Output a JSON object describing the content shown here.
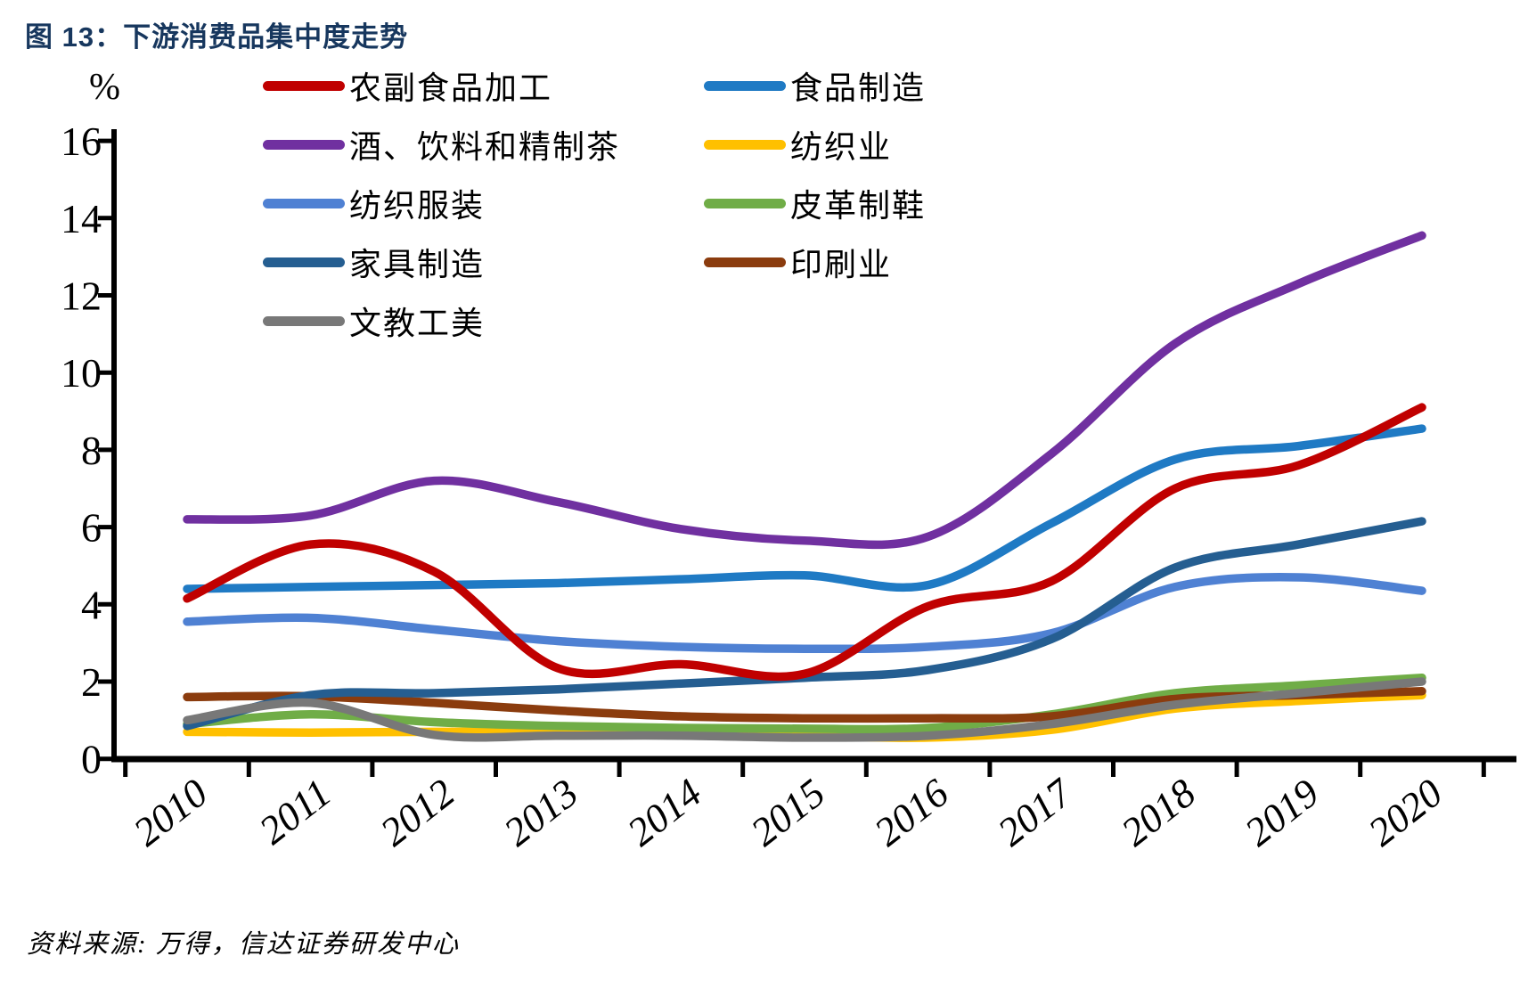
{
  "header": {
    "title": "图 13：下游消费品集中度走势"
  },
  "source": {
    "text": "资料来源: 万得，信达证券研发中心"
  },
  "chart_data": {
    "type": "line",
    "title": "图 13：下游消费品集中度走势",
    "xlabel": "",
    "ylabel": "%",
    "x": [
      2010,
      2011,
      2012,
      2013,
      2014,
      2015,
      2016,
      2017,
      2018,
      2019,
      2020
    ],
    "ylim": [
      0,
      16
    ],
    "yticks": [
      0,
      2,
      4,
      6,
      8,
      10,
      12,
      14,
      16
    ],
    "grid": false,
    "legend_position": "top",
    "series": [
      {
        "name": "农副食品加工",
        "color": "#C00000",
        "values": [
          4.15,
          5.55,
          4.85,
          2.35,
          2.45,
          2.2,
          3.95,
          4.6,
          7.0,
          7.6,
          9.1
        ]
      },
      {
        "name": "食品制造",
        "color": "#1F7AC4",
        "values": [
          4.4,
          4.45,
          4.5,
          4.55,
          4.65,
          4.75,
          4.5,
          6.1,
          7.75,
          8.1,
          8.55
        ]
      },
      {
        "name": "酒、饮料和精制茶",
        "color": "#7030A0",
        "values": [
          6.2,
          6.3,
          7.2,
          6.65,
          5.95,
          5.65,
          5.75,
          7.9,
          10.75,
          12.3,
          13.55
        ]
      },
      {
        "name": "纺织业",
        "color": "#FFC000",
        "values": [
          0.7,
          0.68,
          0.7,
          0.7,
          0.65,
          0.6,
          0.55,
          0.75,
          1.3,
          1.5,
          1.65
        ]
      },
      {
        "name": "纺织服装",
        "color": "#4F81D3",
        "values": [
          3.55,
          3.65,
          3.35,
          3.05,
          2.9,
          2.85,
          2.9,
          3.25,
          4.45,
          4.7,
          4.35
        ]
      },
      {
        "name": "皮革制鞋",
        "color": "#70AD47",
        "values": [
          0.9,
          1.15,
          0.95,
          0.85,
          0.8,
          0.78,
          0.8,
          1.15,
          1.7,
          1.9,
          2.1
        ]
      },
      {
        "name": "家具制造",
        "color": "#255E91",
        "values": [
          0.85,
          1.65,
          1.7,
          1.8,
          1.95,
          2.1,
          2.3,
          3.1,
          4.95,
          5.55,
          6.15
        ]
      },
      {
        "name": "印刷业",
        "color": "#8B3C0E",
        "values": [
          1.6,
          1.62,
          1.45,
          1.25,
          1.1,
          1.05,
          1.05,
          1.1,
          1.55,
          1.65,
          1.75
        ]
      },
      {
        "name": "文教工美",
        "color": "#787878",
        "values": [
          1.0,
          1.45,
          0.62,
          0.6,
          0.6,
          0.55,
          0.6,
          0.9,
          1.4,
          1.7,
          2.0
        ]
      }
    ]
  }
}
